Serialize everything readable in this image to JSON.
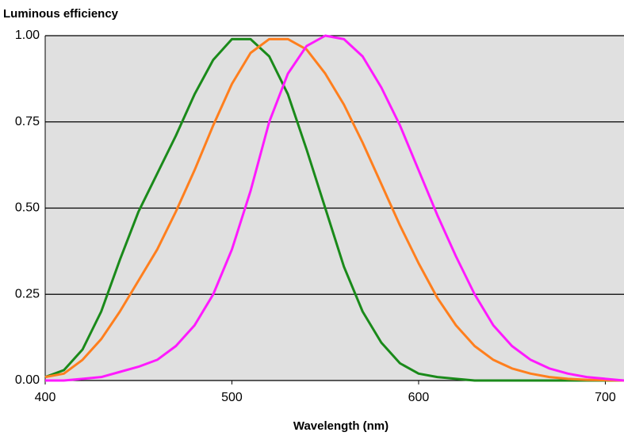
{
  "chart_data": {
    "type": "line",
    "y_label": "Luminous efficiency",
    "x_label": "Wavelength (nm)",
    "x": [
      400,
      410,
      420,
      430,
      440,
      450,
      460,
      470,
      480,
      490,
      500,
      510,
      520,
      530,
      540,
      550,
      560,
      570,
      580,
      590,
      600,
      610,
      620,
      630,
      640,
      650,
      660,
      670,
      680,
      690,
      700,
      710
    ],
    "series": [
      {
        "color": "#1a8a1a",
        "values": [
          0.01,
          0.03,
          0.09,
          0.2,
          0.35,
          0.49,
          0.6,
          0.71,
          0.83,
          0.93,
          0.99,
          0.99,
          0.94,
          0.83,
          0.67,
          0.5,
          0.33,
          0.2,
          0.11,
          0.05,
          0.02,
          0.01,
          0.005,
          0,
          0,
          0,
          0,
          0,
          0,
          0,
          0,
          0
        ]
      },
      {
        "color": "#ff7f1e",
        "values": [
          0.01,
          0.02,
          0.06,
          0.12,
          0.2,
          0.29,
          0.38,
          0.49,
          0.61,
          0.74,
          0.86,
          0.95,
          0.99,
          0.99,
          0.96,
          0.89,
          0.8,
          0.69,
          0.57,
          0.45,
          0.34,
          0.24,
          0.16,
          0.1,
          0.06,
          0.035,
          0.02,
          0.01,
          0.005,
          0.002,
          0.001,
          0
        ]
      },
      {
        "color": "#ff1aff",
        "values": [
          0,
          0,
          0.005,
          0.01,
          0.025,
          0.04,
          0.06,
          0.1,
          0.16,
          0.25,
          0.38,
          0.55,
          0.75,
          0.89,
          0.97,
          1.0,
          0.99,
          0.94,
          0.85,
          0.74,
          0.61,
          0.48,
          0.36,
          0.25,
          0.16,
          0.1,
          0.06,
          0.035,
          0.02,
          0.01,
          0.005,
          0
        ]
      }
    ],
    "xlim": [
      400,
      710
    ],
    "xticks": [
      400,
      500,
      600,
      700
    ],
    "ylim": [
      0,
      1
    ],
    "yticks": [
      {
        "value": 0,
        "label": "0.00"
      },
      {
        "value": 0.25,
        "label": "0.25"
      },
      {
        "value": 0.5,
        "label": "0.50"
      },
      {
        "value": 0.75,
        "label": "0.75"
      },
      {
        "value": 1,
        "label": "1.00"
      }
    ],
    "grid": true
  }
}
